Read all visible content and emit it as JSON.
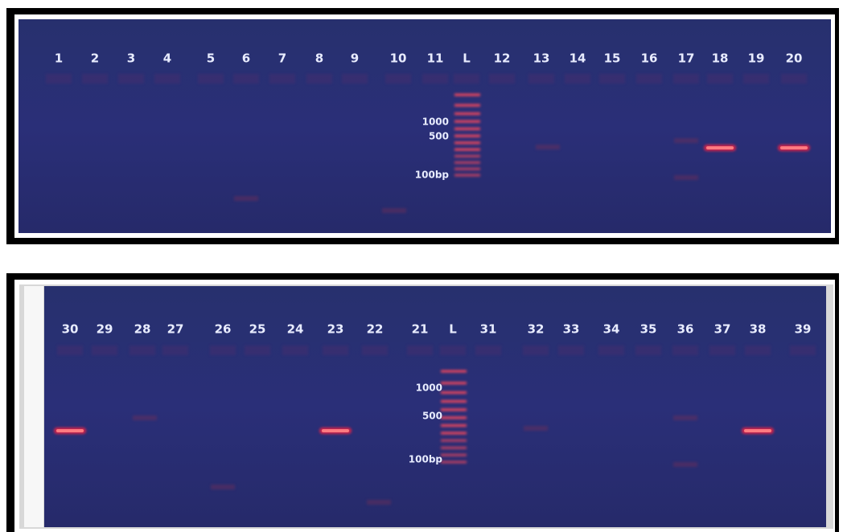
{
  "gels": [
    {
      "lanes": [
        "1",
        "2",
        "3",
        "4",
        "5",
        "6",
        "7",
        "8",
        "9",
        "10",
        "11",
        "L",
        "12",
        "13",
        "14",
        "15",
        "16",
        "17",
        "18",
        "19",
        "20"
      ],
      "ladder": [
        "1000",
        "500",
        "100bp"
      ]
    },
    {
      "lanes": [
        "30",
        "29",
        "28",
        "27",
        "26",
        "25",
        "24",
        "23",
        "22",
        "21",
        "L",
        "31",
        "32",
        "33",
        "34",
        "35",
        "36",
        "37",
        "38",
        "39"
      ],
      "ladder": [
        "1000",
        "500",
        "100bp"
      ]
    }
  ]
}
